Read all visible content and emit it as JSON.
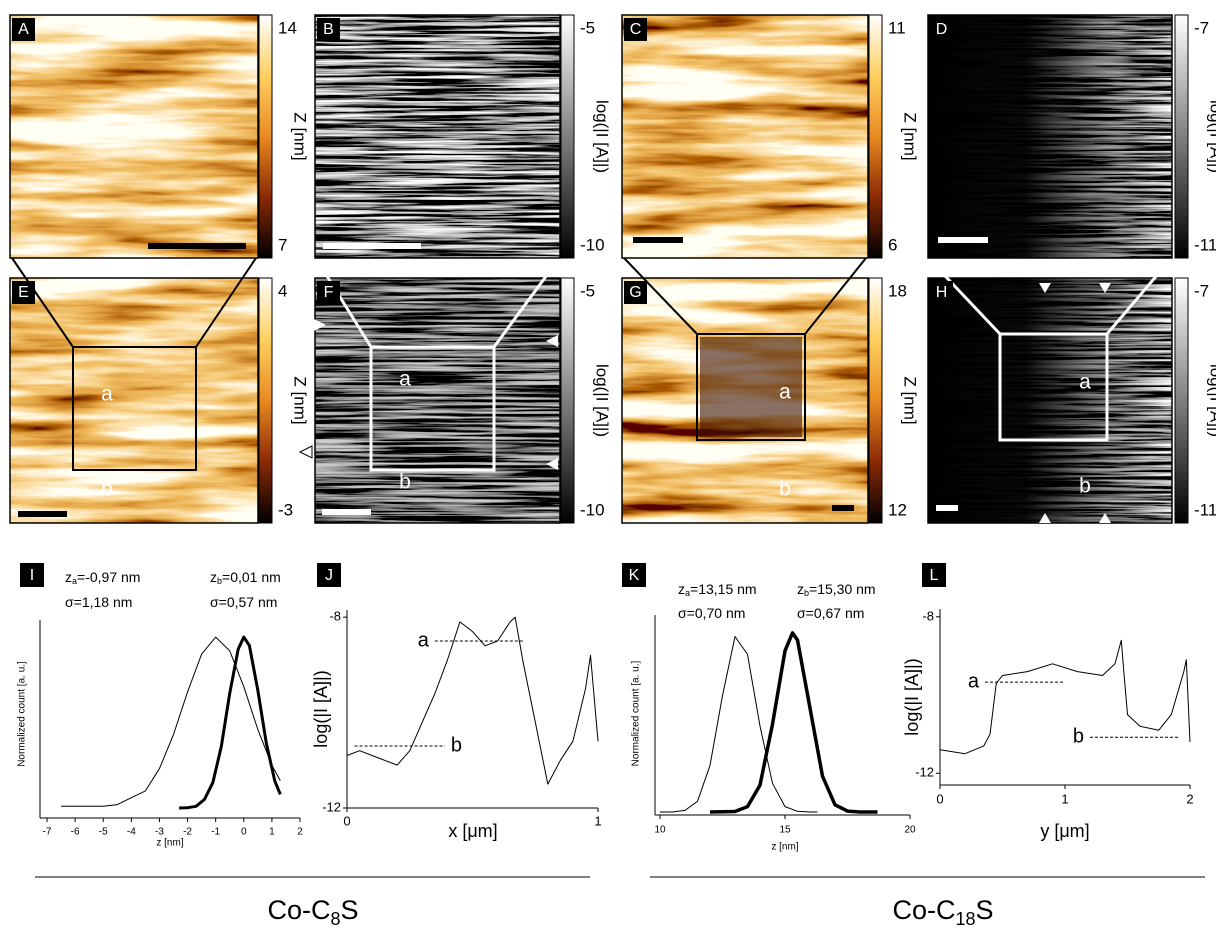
{
  "image_panels": [
    {
      "label": "A",
      "colorbar": "hot",
      "colorbar_label": "Z [nm]",
      "colorbar_ticks": [
        14,
        7
      ]
    },
    {
      "label": "B",
      "colorbar": "gray",
      "colorbar_label": "log(|I [A]|)",
      "colorbar_ticks": [
        -5,
        -10
      ]
    },
    {
      "label": "C",
      "colorbar": "hot",
      "colorbar_label": "Z [nm]",
      "colorbar_ticks": [
        11,
        6
      ]
    },
    {
      "label": "D",
      "colorbar": "gray",
      "colorbar_label": "log(|I [A]|)",
      "colorbar_ticks": [
        -7,
        -11
      ]
    },
    {
      "label": "E",
      "colorbar": "hot",
      "colorbar_label": "Z [nm]",
      "colorbar_ticks": [
        4,
        -3
      ],
      "annotations": [
        "a",
        "b"
      ]
    },
    {
      "label": "F",
      "colorbar": "gray",
      "colorbar_label": "log(|I [A]|)",
      "colorbar_ticks": [
        -5,
        -10
      ],
      "annotations": [
        "a",
        "b"
      ]
    },
    {
      "label": "G",
      "colorbar": "hot",
      "colorbar_label": "Z [nm]",
      "colorbar_ticks": [
        18,
        12
      ],
      "annotations": [
        "a",
        "b"
      ]
    },
    {
      "label": "H",
      "colorbar": "gray",
      "colorbar_label": "log(|I [A]|)",
      "colorbar_ticks": [
        -7,
        -11
      ],
      "annotations": [
        "a",
        "b"
      ]
    }
  ],
  "chart_data": [
    {
      "type": "line",
      "label": "I",
      "xlabel": "z [nm]",
      "ylabel": "Normalized count [a. u.]",
      "xlim": [
        -7,
        2
      ],
      "xticks": [
        -7,
        -6,
        -5,
        -4,
        -3,
        -2,
        -1,
        0,
        1,
        2
      ],
      "ylim": [
        0,
        1.1
      ],
      "annotations": [
        {
          "text": "z",
          "sub": "a",
          "rest": "=-0,97 nm"
        },
        {
          "text": "σ=1,18 nm"
        },
        {
          "text": "z",
          "sub": "b",
          "rest": "=0,01 nm"
        },
        {
          "text": "σ=0,57 nm"
        }
      ],
      "series": [
        {
          "color": "#000000",
          "line_width": 1,
          "x": [
            -6.5,
            -6,
            -5.5,
            -5,
            -4.5,
            -4,
            -3.5,
            -3,
            -2.5,
            -2,
            -1.5,
            -1,
            -0.5,
            0,
            0.5,
            1,
            1.3
          ],
          "values": [
            0.01,
            0.01,
            0.01,
            0.01,
            0.02,
            0.06,
            0.1,
            0.23,
            0.43,
            0.68,
            0.9,
            1.0,
            0.92,
            0.71,
            0.46,
            0.25,
            0.16
          ]
        },
        {
          "color": "#000000",
          "line_width": 3,
          "x": [
            -2.3,
            -2,
            -1.7,
            -1.4,
            -1.1,
            -0.8,
            -0.5,
            -0.2,
            0,
            0.2,
            0.5,
            0.8,
            1.1,
            1.3
          ],
          "values": [
            0,
            0.002,
            0.01,
            0.05,
            0.15,
            0.36,
            0.67,
            0.93,
            1.0,
            0.95,
            0.69,
            0.38,
            0.16,
            0.08
          ]
        }
      ]
    },
    {
      "type": "line",
      "label": "J",
      "xlabel": "x [μm]",
      "ylabel": "log(|I [A]|)",
      "xlim": [
        0,
        1
      ],
      "xticks": [
        0,
        1
      ],
      "ylim": [
        -12,
        -7.85
      ],
      "yticks": [
        -12,
        -8
      ],
      "series": [
        {
          "color": "#000000",
          "line_width": 1,
          "x": [
            0,
            0.05,
            0.1,
            0.15,
            0.2,
            0.25,
            0.3,
            0.35,
            0.4,
            0.45,
            0.5,
            0.55,
            0.6,
            0.65,
            0.67,
            0.7,
            0.75,
            0.8,
            0.85,
            0.9,
            0.95,
            0.97,
            1.0
          ],
          "values": [
            -10.9,
            -10.8,
            -10.9,
            -11.0,
            -11.1,
            -10.8,
            -10.2,
            -9.6,
            -8.9,
            -8.1,
            -8.3,
            -8.6,
            -8.5,
            -8.1,
            -8.0,
            -8.9,
            -10.2,
            -11.5,
            -11.0,
            -10.6,
            -9.5,
            -8.8,
            -10.6
          ]
        }
      ],
      "reference_lines": [
        {
          "label": "a",
          "label_side": "left",
          "value": -8.5,
          "x": [
            0.35,
            0.7
          ]
        },
        {
          "label": "b",
          "label_side": "right",
          "value": -10.7,
          "x": [
            0.03,
            0.39
          ]
        }
      ]
    },
    {
      "type": "line",
      "label": "K",
      "xlabel": "z [nm]",
      "ylabel": "Normalized count [a. u.]",
      "xlim": [
        10,
        20
      ],
      "xticks": [
        10,
        15,
        20
      ],
      "ylim": [
        0,
        1.1
      ],
      "annotations": [
        {
          "text": "z",
          "sub": "a",
          "rest": "=13,15 nm"
        },
        {
          "text": "σ=0,70 nm"
        },
        {
          "text": "z",
          "sub": "b",
          "rest": "=15,30 nm"
        },
        {
          "text": "σ=0,67 nm"
        }
      ],
      "series": [
        {
          "color": "#000000",
          "line_width": 1,
          "x": [
            10,
            10.5,
            11,
            11.5,
            12,
            12.5,
            13,
            13.5,
            14,
            14.5,
            15,
            15.5,
            16,
            16.3
          ],
          "values": [
            0,
            0,
            0.009,
            0.06,
            0.26,
            0.65,
            0.98,
            0.88,
            0.48,
            0.16,
            0.03,
            0.004,
            0,
            0
          ]
        },
        {
          "color": "#000000",
          "line_width": 3.5,
          "x": [
            12,
            13,
            13.5,
            14,
            14.5,
            15,
            15.3,
            15.5,
            16,
            16.5,
            17,
            17.5,
            18,
            18.7
          ],
          "values": [
            0,
            0.003,
            0.03,
            0.15,
            0.49,
            0.9,
            1.0,
            0.96,
            0.58,
            0.2,
            0.04,
            0.005,
            0,
            0
          ]
        }
      ]
    },
    {
      "type": "line",
      "label": "L",
      "xlabel": "y [μm]",
      "ylabel": "log(|I [A]|)",
      "xlim": [
        0,
        2
      ],
      "xticks": [
        0,
        1,
        2
      ],
      "ylim": [
        -12.3,
        -7.8
      ],
      "yticks": [
        -12,
        -8
      ],
      "series": [
        {
          "color": "#000000",
          "line_width": 1,
          "x": [
            0,
            0.2,
            0.35,
            0.4,
            0.45,
            0.5,
            0.7,
            0.9,
            1.1,
            1.3,
            1.4,
            1.45,
            1.47,
            1.5,
            1.6,
            1.75,
            1.85,
            1.95,
            1.97,
            2.0
          ],
          "values": [
            -11.4,
            -11.5,
            -11.3,
            -11.0,
            -9.7,
            -9.5,
            -9.4,
            -9.2,
            -9.4,
            -9.5,
            -9.2,
            -8.6,
            -9.4,
            -10.5,
            -10.8,
            -10.9,
            -10.5,
            -9.4,
            -9.1,
            -11.2
          ]
        }
      ],
      "reference_lines": [
        {
          "label": "a",
          "label_side": "left",
          "value": -9.67,
          "x": [
            0.36,
            1.0
          ]
        },
        {
          "label": "b",
          "label_side": "left",
          "value": -11.08,
          "x": [
            1.2,
            1.92
          ]
        }
      ]
    }
  ],
  "captions": [
    {
      "text": "Co-C",
      "sub": "8",
      "rest": "S"
    },
    {
      "text": "Co-C",
      "sub": "18",
      "rest": "S"
    }
  ]
}
